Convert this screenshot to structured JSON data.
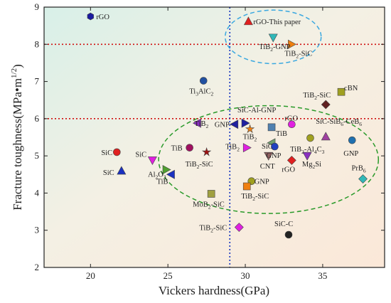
{
  "chart_data": {
    "type": "scatter",
    "xlabel": "Vickers hardness(GPa)",
    "ylabel": "Fracture toughness(MPa•m^1/2)",
    "xlim": [
      17,
      39
    ],
    "ylim": [
      2,
      9
    ],
    "xticks": [
      20,
      25,
      30,
      35
    ],
    "yticks": [
      2,
      3,
      4,
      5,
      6,
      7,
      8,
      9
    ],
    "grid": false,
    "reference_lines": [
      {
        "orientation": "horizontal",
        "value": 8.0,
        "color": "#d01010",
        "style": "dotted"
      },
      {
        "orientation": "horizontal",
        "value": 6.0,
        "color": "#d01010",
        "style": "dotted"
      },
      {
        "orientation": "vertical",
        "value": 29.0,
        "color": "#1030c0",
        "style": "dotted"
      }
    ],
    "ellipses": [
      {
        "cx": 31.8,
        "cy": 8.2,
        "rx": 3.1,
        "ry": 0.72,
        "color": "#3aa8e0",
        "style": "dashed"
      },
      {
        "cx": 31.5,
        "cy": 4.9,
        "rx": 7.1,
        "ry": 1.45,
        "color": "#2a9a2a",
        "style": "dashed"
      }
    ],
    "points": [
      {
        "label": "rGO",
        "x": 20.0,
        "y": 8.75,
        "marker": "hexagon",
        "color": "#1a1aa0",
        "text_dx": 8,
        "text_dy": 4
      },
      {
        "label": "rGO-This paper",
        "x": 30.2,
        "y": 8.62,
        "marker": "triangle-up",
        "color": "#e02020",
        "text_dx": 7,
        "text_dy": 4
      },
      {
        "label": "TiB2-GNP",
        "x": 31.8,
        "y": 8.18,
        "marker": "triangle-down",
        "color": "#30b8b8",
        "text_dx": -20,
        "text_dy": 16
      },
      {
        "label": "TiB2-SiC",
        "x": 33.0,
        "y": 8.0,
        "marker": "triangle-right",
        "color": "#f08010",
        "text_dx": -10,
        "text_dy": 16
      },
      {
        "label": "Ti3AlC2",
        "x": 27.3,
        "y": 7.02,
        "marker": "circle",
        "color": "#2050a0",
        "text_dx": -20,
        "text_dy": 18
      },
      {
        "label": "cBN",
        "x": 36.2,
        "y": 6.72,
        "marker": "square",
        "color": "#a0a020",
        "text_dx": 4,
        "text_dy": -2
      },
      {
        "label": "TiB2-SiC",
        "x": 35.2,
        "y": 6.38,
        "marker": "diamond",
        "color": "#602020",
        "text_dx": -32,
        "text_dy": -10
      },
      {
        "label": "SiC-Al-GNP",
        "x": 30.0,
        "y": 5.88,
        "marker": "triangle-right",
        "color": "#2020a0",
        "text_dx": -11,
        "text_dy": -15
      },
      {
        "label": "TiB2",
        "x": 26.9,
        "y": 5.88,
        "marker": "triangle-left",
        "color": "#8a30c0",
        "text_dx": -4,
        "text_dy": 4
      },
      {
        "label": "GNP",
        "x": 29.3,
        "y": 5.85,
        "marker": "triangle-left",
        "color": "#2020a0",
        "text_dx": -28,
        "text_dy": 4
      },
      {
        "label": "TiB2",
        "x": 30.3,
        "y": 5.72,
        "marker": "star",
        "color": "#f08010",
        "text_dx": -10,
        "text_dy": 14
      },
      {
        "label": "rGO",
        "x": 33.0,
        "y": 5.85,
        "marker": "circle",
        "color": "#e020e0",
        "text_dx": -10,
        "text_dy": -5
      },
      {
        "label": "TiB",
        "x": 31.7,
        "y": 5.77,
        "marker": "square",
        "color": "#5080b0",
        "text_dx": 6,
        "text_dy": 12
      },
      {
        "label": "SiC-SiB6-CeB6",
        "x": 35.2,
        "y": 5.52,
        "marker": "triangle-up",
        "color": "#a040a0",
        "text_dx": -14,
        "text_dy": -18
      },
      {
        "label": "",
        "x": 34.2,
        "y": 5.48,
        "marker": "circle",
        "color": "#a0a020",
        "text_dx": 0,
        "text_dy": 0
      },
      {
        "label": "GNP",
        "x": 36.9,
        "y": 5.42,
        "marker": "circle",
        "color": "#2070b0",
        "text_dx": -12,
        "text_dy": 22
      },
      {
        "label": "SiC",
        "x": 21.7,
        "y": 5.1,
        "marker": "circle",
        "color": "#e02020",
        "text_dx": -22,
        "text_dy": 4
      },
      {
        "label": "SiC",
        "x": 24.0,
        "y": 4.88,
        "marker": "triangle-down",
        "color": "#e020e0",
        "text_dx": -24,
        "text_dy": -5
      },
      {
        "label": "TiB",
        "x": 26.4,
        "y": 5.22,
        "marker": "circle",
        "color": "#a01060",
        "text_dx": -26,
        "text_dy": 4
      },
      {
        "label": "TiB2-SiC",
        "x": 27.5,
        "y": 5.1,
        "marker": "star",
        "color": "#a01010",
        "text_dx": -30,
        "text_dy": 20
      },
      {
        "label": "TiB2",
        "x": 30.1,
        "y": 5.22,
        "marker": "triangle-right",
        "color": "#e020e0",
        "text_dx": -30,
        "text_dy": 2
      },
      {
        "label": "SiC",
        "x": 31.7,
        "y": 5.35,
        "marker": "triangle-left",
        "color": "#70a070",
        "text_dx": -14,
        "text_dy": 8
      },
      {
        "label": "GNP",
        "x": 31.9,
        "y": 5.25,
        "marker": "circle",
        "color": "#2040c0",
        "text_dx": -12,
        "text_dy": 16
      },
      {
        "label": "CNT",
        "x": 31.5,
        "y": 5.0,
        "marker": "triangle-down",
        "color": "#906060",
        "text_dx": -12,
        "text_dy": 18
      },
      {
        "label": "TiB2-Al4C3",
        "x": 34.0,
        "y": 5.0,
        "marker": "triangle-down",
        "color": "#8a30c0",
        "text_dx": -24,
        "text_dy": -6
      },
      {
        "label": "rGO",
        "x": 33.0,
        "y": 4.88,
        "marker": "diamond",
        "color": "#e02020",
        "text_dx": -14,
        "text_dy": 16
      },
      {
        "label": "Mg2Si",
        "x": 33.3,
        "y": 4.95,
        "marker": "none",
        "color": "#222",
        "text_dx": 8,
        "text_dy": 12
      },
      {
        "label": "SiC",
        "x": 22.0,
        "y": 4.6,
        "marker": "triangle-up",
        "color": "#1a30c0",
        "text_dx": -26,
        "text_dy": 6
      },
      {
        "label": "Al2O3",
        "x": 24.9,
        "y": 4.63,
        "marker": "triangle-right",
        "color": "#50a030",
        "text_dx": -26,
        "text_dy": 10
      },
      {
        "label": "TiB",
        "x": 25.2,
        "y": 4.5,
        "marker": "triangle-left",
        "color": "#1a30c0",
        "text_dx": -20,
        "text_dy": 13
      },
      {
        "label": "GNP",
        "x": 30.4,
        "y": 4.32,
        "marker": "circle",
        "color": "#a0a020",
        "text_dx": 4,
        "text_dy": 4
      },
      {
        "label": "TiB2-SiC",
        "x": 30.1,
        "y": 4.18,
        "marker": "square",
        "color": "#f08010",
        "text_dx": -8,
        "text_dy": 17
      },
      {
        "label": "PrB6",
        "x": 37.6,
        "y": 4.38,
        "marker": "diamond",
        "color": "#30b8b8",
        "text_dx": -16,
        "text_dy": -12
      },
      {
        "label": "MoB2-SiC",
        "x": 27.8,
        "y": 3.98,
        "marker": "square",
        "color": "#a0a040",
        "text_dx": -26,
        "text_dy": 18
      },
      {
        "label": "TiB2-SiC",
        "x": 29.6,
        "y": 3.08,
        "marker": "diamond",
        "color": "#e020e0",
        "text_dx": -56,
        "text_dy": 4
      },
      {
        "label": "SiC-C",
        "x": 32.8,
        "y": 2.88,
        "marker": "circle",
        "color": "#222222",
        "text_dx": -20,
        "text_dy": -12
      }
    ]
  }
}
